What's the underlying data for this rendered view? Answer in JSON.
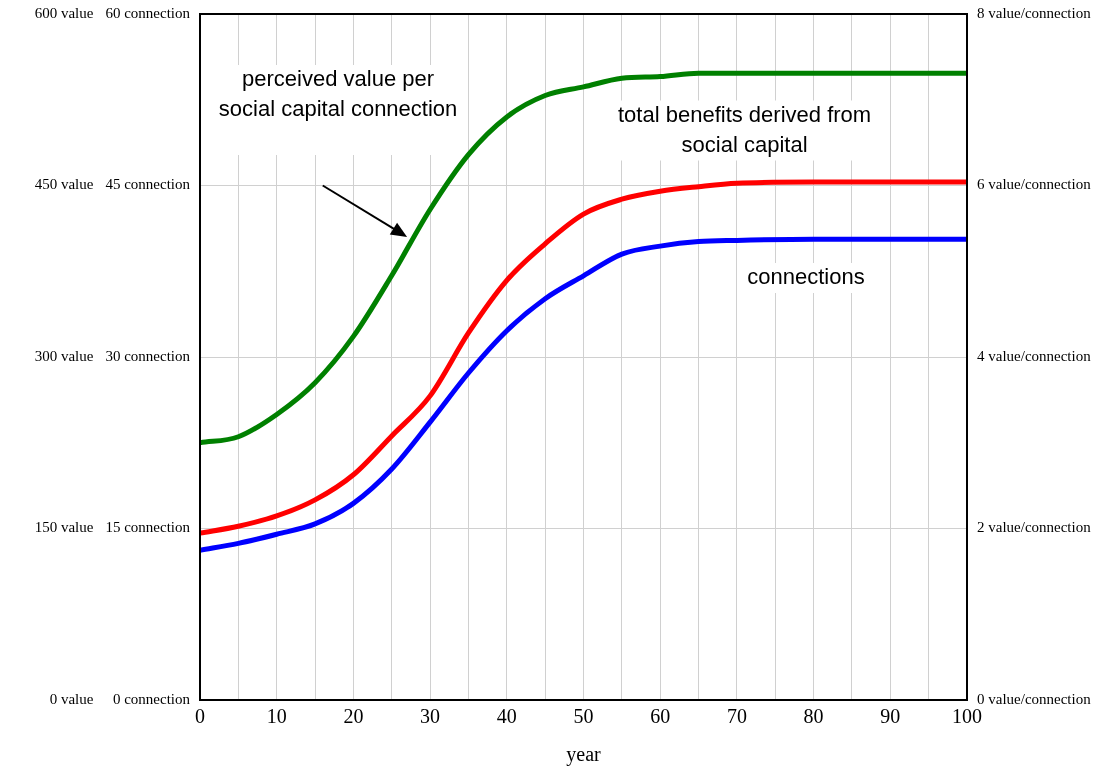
{
  "chart_data": {
    "type": "line",
    "xlabel": "year",
    "x": [
      0,
      5,
      10,
      15,
      20,
      25,
      30,
      35,
      40,
      45,
      50,
      55,
      60,
      65,
      70,
      80,
      90,
      100
    ],
    "xlim": [
      0,
      100
    ],
    "xticks": [
      0,
      {
        "value": 5,
        "label": null
      },
      10,
      {
        "value": 15,
        "label": null
      },
      20,
      {
        "value": 25,
        "label": null
      },
      30,
      {
        "value": 35,
        "label": null
      },
      40,
      {
        "value": 45,
        "label": null
      },
      50,
      {
        "value": 55,
        "label": null
      },
      60,
      {
        "value": 65,
        "label": null
      },
      70,
      {
        "value": 75,
        "label": null
      },
      80,
      {
        "value": 85,
        "label": null
      },
      90,
      {
        "value": 95,
        "label": null
      },
      100
    ],
    "ylim": [
      0,
      60
    ],
    "yticks": [
      {
        "value": 0,
        "label": "0 connection"
      },
      {
        "value": 15,
        "label": "15 connection"
      },
      {
        "value": 30,
        "label": "30 connection"
      },
      {
        "value": 45,
        "label": "45 connection"
      },
      {
        "value": 60,
        "label": "60 connection"
      }
    ],
    "y2lim": [
      0,
      600
    ],
    "y2ticks": [
      {
        "value": 0,
        "label": "0 value"
      },
      {
        "value": 150,
        "label": "150 value"
      },
      {
        "value": 300,
        "label": "300 value"
      },
      {
        "value": 450,
        "label": "450 value"
      },
      {
        "value": 600,
        "label": "600 value"
      }
    ],
    "y3lim": [
      0,
      8
    ],
    "y3ticks": [
      {
        "value": 0,
        "label": "0 value/connection"
      },
      {
        "value": 2,
        "label": "2 value/connection"
      },
      {
        "value": 4,
        "label": "4 value/connection"
      },
      {
        "value": 6,
        "label": "6 value/connection"
      },
      {
        "value": 8,
        "label": "8 value/connection"
      }
    ],
    "grid": true,
    "legend": false,
    "marker": "none",
    "line_style": "solid",
    "series": [
      {
        "name": "perceived value per social capital connection",
        "color": "#008000",
        "axis": "y3",
        "values": [
          3.0,
          3.07,
          3.33,
          3.7,
          4.24,
          4.95,
          5.72,
          6.36,
          6.8,
          7.05,
          7.15,
          7.25,
          7.27,
          7.31,
          7.31,
          7.31,
          7.31,
          7.31
        ]
      },
      {
        "name": "total benefits derived from social capital",
        "color": "#ff0000",
        "axis": "y2",
        "values": [
          146,
          152,
          161,
          175,
          197,
          231,
          266,
          321,
          367,
          399,
          425,
          438,
          445,
          449,
          452,
          453,
          453,
          453
        ]
      },
      {
        "name": "connections",
        "color": "#0000ff",
        "values": [
          13.1,
          13.7,
          14.5,
          15.4,
          17.2,
          20.2,
          24.3,
          28.6,
          32.3,
          35.1,
          37.1,
          39.0,
          39.7,
          40.1,
          40.2,
          40.3,
          40.3,
          40.3
        ]
      }
    ]
  }
}
